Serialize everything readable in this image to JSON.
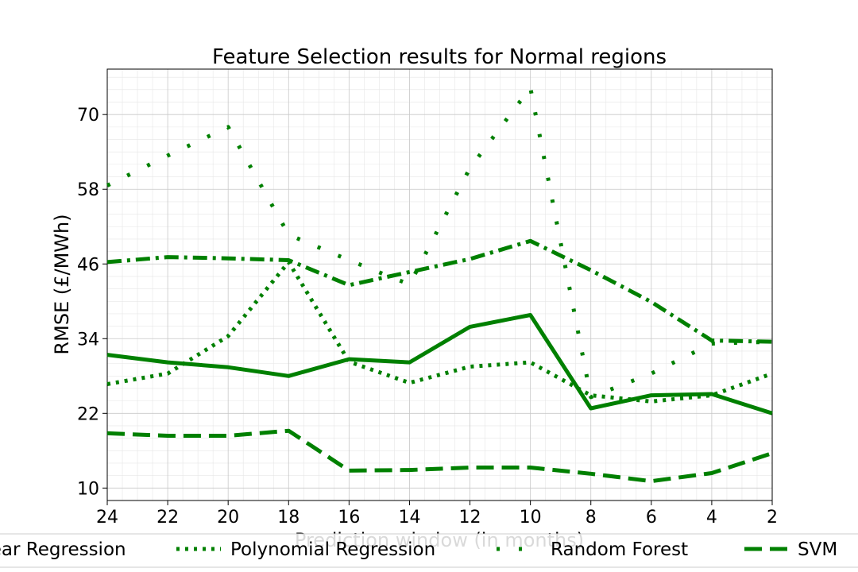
{
  "chart_data": {
    "type": "line",
    "title": "Feature Selection results for Normal regions",
    "x_label": "Prediction window (in months)",
    "y_label": "RMSE (£/MWh)",
    "x": [
      24,
      22,
      20,
      18,
      16,
      14,
      12,
      10,
      8,
      6,
      4,
      2
    ],
    "xlim": [
      24,
      2
    ],
    "xticks": [
      24,
      22,
      20,
      18,
      16,
      14,
      12,
      10,
      8,
      6,
      4,
      2
    ],
    "ylim": [
      8,
      77.3
    ],
    "yticks": [
      10,
      22,
      34,
      46,
      58,
      70
    ],
    "grid": true,
    "legend": "bottom",
    "series": [
      {
        "name": "Linear Regression",
        "color": "#008000",
        "style": "solid",
        "values": [
          31.4,
          30.2,
          29.4,
          28.0,
          30.7,
          30.2,
          35.9,
          37.8,
          22.8,
          24.9,
          25.1,
          22.0
        ]
      },
      {
        "name": "Polynomial Regression",
        "color": "#008000",
        "style": "dotted",
        "values": [
          26.7,
          28.4,
          34.4,
          46.3,
          30.3,
          26.9,
          29.5,
          30.2,
          24.9,
          23.9,
          24.9,
          28.4
        ]
      },
      {
        "name": "Random Forest",
        "color": "#008000",
        "style": "loosely-dotted",
        "values": [
          58.6,
          63.4,
          68.0,
          50.7,
          46.6,
          42.7,
          61.4,
          74.3,
          24.6,
          28.4,
          33.2,
          33.5
        ]
      },
      {
        "color": "#008000",
        "style": "dashdot",
        "values": [
          46.3,
          47.1,
          46.9,
          46.6,
          42.6,
          44.7,
          46.8,
          49.7,
          45.0,
          39.9,
          33.7,
          33.5
        ]
      },
      {
        "name": "SVM",
        "color": "#008000",
        "style": "dashed",
        "values": [
          18.8,
          18.4,
          18.4,
          19.2,
          12.8,
          12.9,
          13.3,
          13.3,
          12.3,
          11.1,
          12.4,
          15.6
        ]
      }
    ]
  }
}
